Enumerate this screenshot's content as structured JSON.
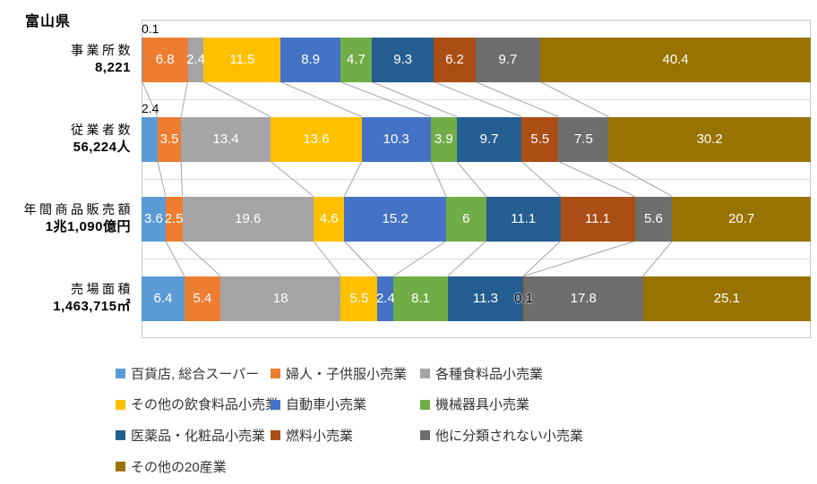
{
  "title": "富山県",
  "chart_data": {
    "type": "bar",
    "subtype": "100%-stacked-horizontal-with-series-lines",
    "unit": "%",
    "xlim": [
      0,
      100
    ],
    "grid": "horizontal-category-boundaries",
    "legend_position": "bottom",
    "categories": [
      "事業所数",
      "従業者数",
      "年間商品販売額",
      "売場面積"
    ],
    "category_totals": [
      "8,221",
      "56,224人",
      "1兆1,090億円",
      "1,463,715㎡"
    ],
    "series": [
      {
        "name": "百貨店, 総合スーパー",
        "color": "#5B9BD5",
        "values": [
          0.1,
          2.4,
          3.6,
          6.4
        ]
      },
      {
        "name": "婦人・子供服小売業",
        "color": "#ED7D31",
        "values": [
          6.8,
          3.5,
          2.5,
          5.4
        ]
      },
      {
        "name": "各種食料品小売業",
        "color": "#A5A5A5",
        "values": [
          2.4,
          13.4,
          19.6,
          18
        ]
      },
      {
        "name": "その他の飲食料品小売業",
        "color": "#FFC000",
        "values": [
          11.5,
          13.6,
          4.6,
          5.5
        ]
      },
      {
        "name": "自動車小売業",
        "color": "#4472C4",
        "values": [
          8.9,
          10.3,
          15.2,
          2.4
        ]
      },
      {
        "name": "機械器具小売業",
        "color": "#70AD47",
        "values": [
          4.7,
          3.9,
          6,
          8.1
        ]
      },
      {
        "name": "医薬品・化粧品小売業",
        "color": "#255E91",
        "values": [
          9.3,
          9.7,
          11.1,
          11.3
        ]
      },
      {
        "name": "燃料小売業",
        "color": "#AB4E16",
        "values": [
          6.2,
          5.5,
          11.1,
          0.1
        ]
      },
      {
        "name": "他に分類されない小売業",
        "color": "#6E6E6E",
        "values": [
          9.7,
          7.5,
          5.6,
          17.8
        ]
      },
      {
        "name": "その他の20産業",
        "color": "#997300",
        "values": [
          40.4,
          30.2,
          20.7,
          25.1
        ]
      }
    ],
    "label_overrides": [
      {
        "category": 0,
        "series": 0,
        "placement": "above-bar"
      },
      {
        "category": 1,
        "series": 0,
        "placement": "above-bar"
      },
      {
        "category": 3,
        "series": 7,
        "placement": "inside-black"
      }
    ],
    "line_color": "#A6A6A6"
  }
}
